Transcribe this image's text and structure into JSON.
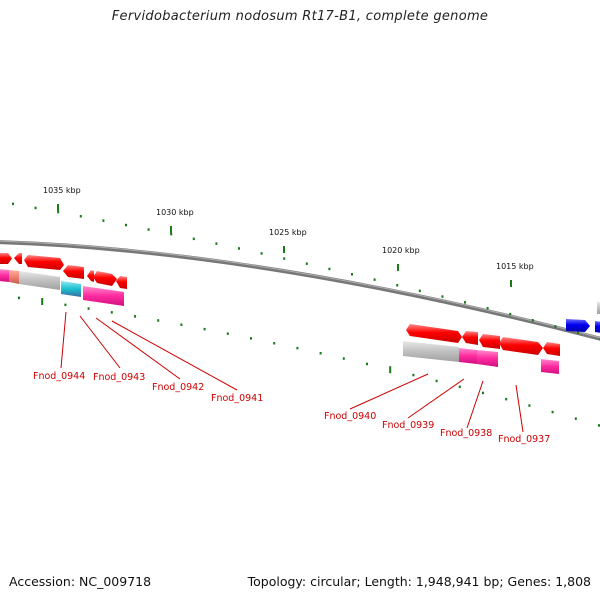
{
  "title": "Fervidobacterium nodosum Rt17-B1, complete genome",
  "footer": {
    "accession": "Accession: NC_009718",
    "summary": "Topology: circular; Length: 1,948,941 bp; Genes: 1,808"
  },
  "scale_labels": [
    "1035 kbp",
    "1030 kbp",
    "1025 kbp",
    "1020 kbp",
    "1015 kbp"
  ],
  "gene_labels": [
    "Fnod_0944",
    "Fnod_0943",
    "Fnod_0942",
    "Fnod_0941",
    "Fnod_0940",
    "Fnod_0939",
    "Fnod_0938",
    "Fnod_0937"
  ],
  "colors": {
    "backbone": "#808080",
    "tick": "#1a7a1a",
    "gene_forward": "#ff0000",
    "gene_reverse": "#0000ee",
    "cog_gray": "#c0c0c0",
    "cog_magenta": "#ff2aa0",
    "cog_cyan": "#19c0d0",
    "cog_salmon": "#f08070",
    "label": "#cc0000"
  }
}
